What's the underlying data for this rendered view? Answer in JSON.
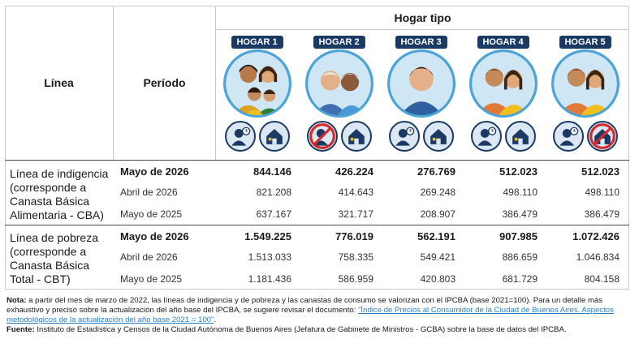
{
  "header": {
    "linea_label": "Línea",
    "periodo_label": "Período",
    "hogar_tipo_label": "Hogar tipo"
  },
  "hogares": [
    {
      "tag": "HOGAR 1"
    },
    {
      "tag": "HOGAR 2"
    },
    {
      "tag": "HOGAR 3"
    },
    {
      "tag": "HOGAR 4"
    },
    {
      "tag": "HOGAR 5"
    }
  ],
  "sections": [
    {
      "label_lines": [
        "Línea de indigencia",
        "(corresponde a",
        "Canasta Básica",
        "Alimentaria - CBA)"
      ],
      "rows": [
        {
          "periodo": "Mayo de 2026",
          "values": [
            "844.146",
            "426.224",
            "276.769",
            "512.023",
            "512.023"
          ]
        },
        {
          "periodo": "Abril de 2026",
          "values": [
            "821.208",
            "414.643",
            "269.248",
            "498.110",
            "498.110"
          ]
        },
        {
          "periodo": "Mayo de 2025",
          "values": [
            "637.167",
            "321.717",
            "208.907",
            "386.479",
            "386.479"
          ]
        }
      ]
    },
    {
      "label_lines": [
        "Línea de pobreza",
        "(corresponde a",
        "Canasta Básica",
        "Total - CBT)"
      ],
      "rows": [
        {
          "periodo": "Mayo de 2026",
          "values": [
            "1.549.225",
            "776.019",
            "562.191",
            "907.985",
            "1.072.426"
          ]
        },
        {
          "periodo": "Abril de 2026",
          "values": [
            "1.513.033",
            "758.335",
            "549.421",
            "886.659",
            "1.046.834"
          ]
        },
        {
          "periodo": "Mayo de 2025",
          "values": [
            "1.181.436",
            "586.959",
            "420.803",
            "681.729",
            "804.158"
          ]
        }
      ]
    }
  ],
  "notes": {
    "nota_label": "Nota:",
    "nota_text": " a partir del mes de marzo de 2022, las líneas de indigencia y de pobreza y las canastas de consumo se valorizan con el IPCBA (base 2021=100). Para un detalle más exhaustivo y preciso sobre la actualización del año base del IPCBA, se sugiere revisar el documento: ",
    "nota_link": "\"Índice de Precios al Consumidor de la Ciudad de Buenos Aires. Aspectos metodológicos de la actualización del año base 2021 = 100\"",
    "nota_end": ".",
    "fuente_label": "Fuente:",
    "fuente_text": " Instituto de Estadística y Censos de la Ciudad Autónoma de Buenos Aires (Jefatura de Gabinete de Ministros - GCBA) sobre la base de datos del IPCBA."
  },
  "colors": {
    "navy": "#1b3a63",
    "ring": "#4aa6d8",
    "no_sign": "#d42a2a",
    "link": "#2a7fc2"
  },
  "icons": [
    [
      "worker-icon",
      "house-icon"
    ],
    [
      "no-worker-icon",
      "house-icon"
    ],
    [
      "worker-icon",
      "house-icon"
    ],
    [
      "worker-icon",
      "house-icon"
    ],
    [
      "worker-icon",
      "no-house-icon"
    ]
  ]
}
